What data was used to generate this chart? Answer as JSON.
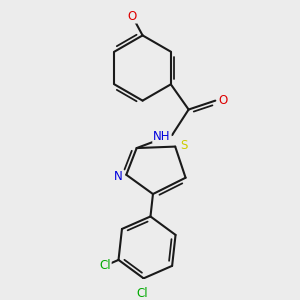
{
  "fig_bg": "#ececec",
  "bond_color": "#1a1a1a",
  "bond_width": 1.5,
  "atom_colors": {
    "N": "#0000dd",
    "O": "#dd0000",
    "S": "#cccc00",
    "Cl": "#00aa00",
    "C": "#1a1a1a"
  },
  "font_size": 8.5,
  "methoxy_label": "O",
  "nh_label": "NH",
  "s_label": "S",
  "n_label": "N",
  "cl_label": "Cl",
  "o_label": "O"
}
